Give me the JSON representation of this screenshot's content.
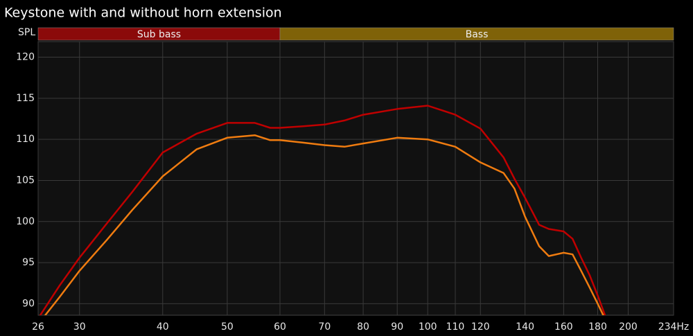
{
  "chart_data": {
    "type": "line",
    "title": "Keystone with and without horn extension",
    "y_label": "SPL",
    "xscale": "log",
    "grid": true,
    "xlim": [
      26,
      234
    ],
    "ylim": [
      88.6,
      121.9
    ],
    "xticks": [
      26,
      30,
      40,
      50,
      60,
      70,
      80,
      90,
      100,
      110,
      120,
      140,
      160,
      180,
      200,
      {
        "value": 234,
        "label": "234Hz"
      }
    ],
    "yticks": [
      90,
      95,
      100,
      105,
      110,
      115,
      120
    ],
    "bands": [
      {
        "name": "Sub bass",
        "from": 26,
        "to": 60,
        "color": "#8b0a0a"
      },
      {
        "name": "Bass",
        "from": 60,
        "to": 234,
        "color": "#7f6208"
      }
    ],
    "x": [
      26,
      28,
      30,
      33,
      36,
      40,
      45,
      50,
      55,
      58,
      60,
      65,
      70,
      75,
      80,
      90,
      100,
      110,
      120,
      130,
      135,
      140,
      147,
      152,
      160,
      165,
      170,
      175,
      180,
      185
    ],
    "series": [
      {
        "color": "#c00000",
        "values": [
          88.2,
          92.2,
          95.6,
          99.8,
          103.6,
          108.4,
          110.7,
          112.0,
          112.0,
          111.4,
          111.4,
          111.6,
          111.8,
          112.3,
          113.0,
          113.7,
          114.1,
          113.0,
          111.3,
          107.8,
          105.2,
          102.9,
          99.6,
          99.1,
          98.8,
          97.9,
          95.6,
          93.5,
          91.0,
          88.4
        ]
      },
      {
        "color": "#f07c10",
        "values": [
          87.5,
          90.8,
          94.0,
          97.8,
          101.4,
          105.5,
          108.8,
          110.2,
          110.5,
          109.9,
          109.9,
          109.6,
          109.3,
          109.1,
          109.5,
          110.2,
          110.0,
          109.1,
          107.2,
          105.9,
          104.0,
          100.6,
          97.0,
          95.8,
          96.2,
          96.0,
          94.0,
          92.0,
          90.0,
          88.0
        ]
      }
    ]
  }
}
